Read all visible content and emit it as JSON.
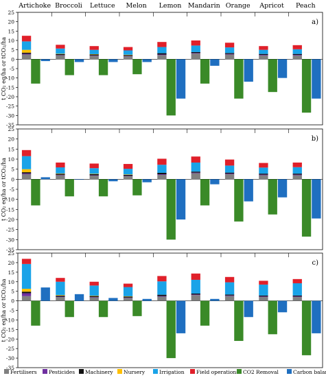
{
  "figure": {
    "crops": [
      "Artichoke",
      "Broccoli",
      "Lettuce",
      "Melon",
      "Lemon",
      "Mandarin",
      "Orange",
      "Apricot",
      "Peach"
    ],
    "ylabel_text": "t CO₂ eq/ha or tCO₂/ha"
  },
  "colors": {
    "Fertilisers": "#808080",
    "Pesticides": "#7030a0",
    "Machinery": "#111111",
    "Nursery": "#ffc000",
    "Irrigation": "#1aa3e8",
    "Field operations": "#e0202a",
    "CO2 Removal": "#3a8a28",
    "Carbon balance": "#1f6fc0"
  },
  "legend": {
    "items": [
      "Fertilisers",
      "Pesticides",
      "Machinery",
      "Nursery",
      "Irrigation",
      "Field operations",
      "CO2 Removal",
      "Carbon balance"
    ]
  },
  "chart_data": [
    {
      "type": "bar",
      "panel_label": "a)",
      "categories": [
        "Artichoke",
        "Broccoli",
        "Lettuce",
        "Melon",
        "Lemon",
        "Mandarin",
        "Orange",
        "Apricot",
        "Peach"
      ],
      "stacked_emissions": [
        {
          "name": "Fertilisers",
          "values": [
            2.5,
            2.0,
            1.8,
            1.5,
            2.2,
            3.0,
            2.5,
            2.0,
            2.0
          ]
        },
        {
          "name": "Pesticides",
          "values": [
            0.4,
            0.2,
            0.2,
            0.2,
            0.3,
            0.3,
            0.3,
            0.3,
            0.3
          ]
        },
        {
          "name": "Machinery",
          "values": [
            0.6,
            0.5,
            0.5,
            0.5,
            0.7,
            0.5,
            0.5,
            0.5,
            0.5
          ]
        },
        {
          "name": "Nursery",
          "values": [
            1.5,
            0.2,
            0.2,
            0.2,
            0.0,
            0.0,
            0.0,
            0.0,
            0.0
          ]
        },
        {
          "name": "Irrigation",
          "values": [
            4.5,
            2.8,
            2.3,
            2.3,
            3.3,
            3.5,
            3.0,
            2.2,
            2.5
          ]
        },
        {
          "name": "Field operations",
          "values": [
            3.0,
            2.0,
            2.0,
            1.8,
            2.7,
            2.7,
            2.5,
            2.0,
            2.2
          ]
        }
      ],
      "co2_removal": [
        -13,
        -8.5,
        -8.5,
        -8,
        -30,
        -13,
        -21,
        -17.5,
        -28.5
      ],
      "carbon_balance": [
        -1,
        -1.5,
        -1.5,
        -1.5,
        -21,
        -3.5,
        -12,
        -10,
        -21
      ],
      "ylim": [
        -35,
        25
      ],
      "yticks": [
        -35,
        -30,
        -25,
        -20,
        -15,
        -10,
        -5,
        0,
        5,
        10,
        15,
        20,
        25
      ]
    },
    {
      "type": "bar",
      "panel_label": "b)",
      "categories": [
        "Artichoke",
        "Broccoli",
        "Lettuce",
        "Melon",
        "Lemon",
        "Mandarin",
        "Orange",
        "Apricot",
        "Peach"
      ],
      "stacked_emissions": [
        {
          "name": "Fertilisers",
          "values": [
            2.5,
            2.0,
            1.8,
            1.5,
            2.2,
            3.0,
            2.5,
            2.0,
            2.0
          ]
        },
        {
          "name": "Pesticides",
          "values": [
            0.4,
            0.2,
            0.2,
            0.2,
            0.3,
            0.3,
            0.3,
            0.3,
            0.3
          ]
        },
        {
          "name": "Machinery",
          "values": [
            0.6,
            0.5,
            0.5,
            0.5,
            0.7,
            0.5,
            0.5,
            0.5,
            0.5
          ]
        },
        {
          "name": "Nursery",
          "values": [
            1.5,
            0.2,
            0.2,
            0.2,
            0.0,
            0.0,
            0.0,
            0.0,
            0.0
          ]
        },
        {
          "name": "Irrigation",
          "values": [
            6.5,
            3.0,
            2.8,
            2.8,
            4.0,
            4.5,
            3.5,
            3.0,
            3.2
          ]
        },
        {
          "name": "Field operations",
          "values": [
            3.0,
            2.4,
            2.3,
            2.4,
            3.0,
            3.0,
            3.0,
            2.3,
            2.3
          ]
        }
      ],
      "co2_removal": [
        -13,
        -8.5,
        -8.5,
        -8,
        -30,
        -13,
        -21,
        -17.5,
        -28.5
      ],
      "carbon_balance": [
        1,
        0,
        -1,
        -1.5,
        -20,
        -2.5,
        -11,
        -9,
        -19.5
      ],
      "ylim": [
        -35,
        25
      ],
      "yticks": [
        -35,
        -30,
        -25,
        -20,
        -15,
        -10,
        -5,
        0,
        5,
        10,
        15,
        20,
        25
      ]
    },
    {
      "type": "bar",
      "panel_label": "c)",
      "categories": [
        "Artichoke",
        "Broccoli",
        "Lettuce",
        "Melon",
        "Lemon",
        "Mandarin",
        "Orange",
        "Apricot",
        "Peach"
      ],
      "stacked_emissions": [
        {
          "name": "Fertilisers",
          "values": [
            2.5,
            2.0,
            1.8,
            1.5,
            2.2,
            3.0,
            2.5,
            2.0,
            2.0
          ]
        },
        {
          "name": "Pesticides",
          "values": [
            1.5,
            0.2,
            0.2,
            0.2,
            0.3,
            0.3,
            0.3,
            0.3,
            0.3
          ]
        },
        {
          "name": "Machinery",
          "values": [
            0.8,
            0.5,
            0.5,
            0.5,
            0.7,
            0.5,
            0.5,
            0.5,
            0.5
          ]
        },
        {
          "name": "Nursery",
          "values": [
            1.5,
            0.3,
            0.2,
            0.2,
            0.0,
            0.0,
            0.0,
            0.0,
            0.0
          ]
        },
        {
          "name": "Irrigation",
          "values": [
            13,
            7,
            5.3,
            4.8,
            7.0,
            7.2,
            6.4,
            5.7,
            6.4
          ]
        },
        {
          "name": "Field operations",
          "values": [
            2.7,
            2.0,
            2.0,
            1.8,
            2.8,
            3.3,
            2.8,
            2.0,
            2.2
          ]
        }
      ],
      "co2_removal": [
        -13,
        -8.5,
        -8.5,
        -8,
        -30,
        -13,
        -21,
        -17.5,
        -28.5
      ],
      "carbon_balance": [
        7,
        3.5,
        1.5,
        1,
        -17,
        1,
        -8.5,
        -6,
        -17
      ],
      "ylim": [
        -35,
        25
      ],
      "yticks": [
        -35,
        -30,
        -25,
        -20,
        -15,
        -10,
        -5,
        0,
        5,
        10,
        15,
        20,
        25
      ]
    }
  ]
}
